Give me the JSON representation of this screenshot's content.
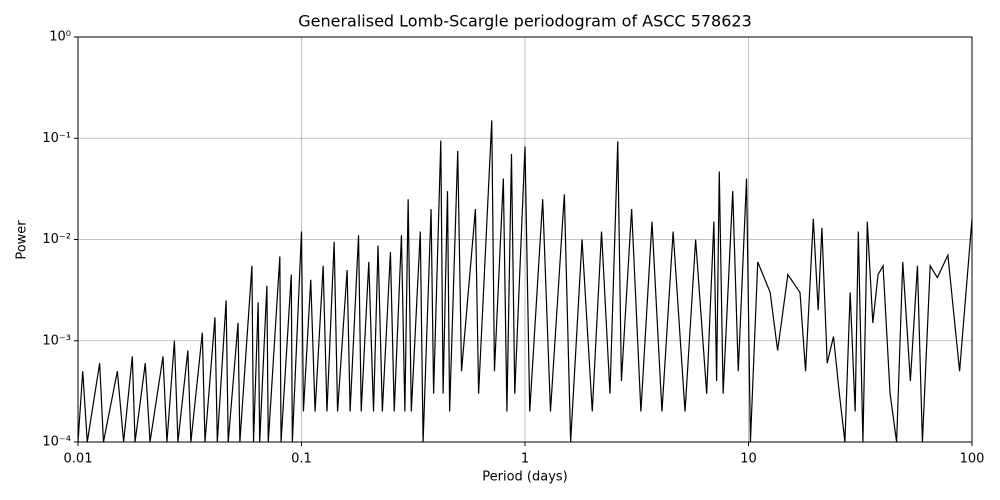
{
  "chart_data": {
    "type": "line",
    "title": "Generalised Lomb-Scargle periodogram of ASCC 578623",
    "x_label": "Period (days)",
    "y_label": "Power",
    "xscale": "log",
    "yscale": "log",
    "grid": true,
    "color": "#000000",
    "xlim": [
      0.01,
      100
    ],
    "ylim": [
      0.0001,
      1
    ],
    "xticks": [
      0.01,
      0.1,
      1,
      10,
      100
    ],
    "yticks": [
      {
        "value": 0.0001,
        "label": "10⁻⁴"
      },
      {
        "value": 0.001,
        "label": "10⁻³"
      },
      {
        "value": 0.01,
        "label": "10⁻²"
      },
      {
        "value": 0.1,
        "label": "10⁻¹"
      },
      {
        "value": 1,
        "label": "10⁰"
      }
    ],
    "x": [
      0.01,
      0.0105,
      0.011,
      0.0125,
      0.013,
      0.015,
      0.016,
      0.0175,
      0.018,
      0.02,
      0.021,
      0.024,
      0.025,
      0.027,
      0.028,
      0.031,
      0.032,
      0.036,
      0.037,
      0.041,
      0.042,
      0.046,
      0.047,
      0.052,
      0.053,
      0.06,
      0.061,
      0.064,
      0.065,
      0.07,
      0.071,
      0.08,
      0.081,
      0.09,
      0.091,
      0.1,
      0.102,
      0.11,
      0.115,
      0.125,
      0.13,
      0.14,
      0.145,
      0.16,
      0.165,
      0.18,
      0.185,
      0.2,
      0.21,
      0.22,
      0.23,
      0.25,
      0.26,
      0.28,
      0.29,
      0.3,
      0.31,
      0.34,
      0.35,
      0.38,
      0.39,
      0.42,
      0.43,
      0.45,
      0.46,
      0.5,
      0.52,
      0.6,
      0.62,
      0.71,
      0.73,
      0.8,
      0.83,
      0.87,
      0.9,
      1.0,
      1.05,
      1.2,
      1.3,
      1.5,
      1.6,
      1.8,
      2.0,
      2.2,
      2.4,
      2.6,
      2.7,
      3.0,
      3.3,
      3.7,
      4.1,
      4.6,
      5.2,
      5.8,
      6.5,
      7.0,
      7.2,
      7.4,
      7.7,
      8.5,
      9.0,
      9.8,
      10.2,
      11,
      12.5,
      13.5,
      15,
      17,
      18,
      19.5,
      20.5,
      21.3,
      22.5,
      24,
      25.5,
      27,
      28.5,
      30,
      31,
      32.5,
      34,
      36,
      38,
      40,
      43,
      46,
      49,
      53,
      57,
      60,
      65,
      70,
      78,
      88,
      100
    ],
    "values": [
      0.0001,
      0.0005,
      0.0001,
      0.0006,
      0.0001,
      0.0005,
      0.0001,
      0.0007,
      0.0001,
      0.0006,
      0.0001,
      0.0007,
      0.0001,
      0.001,
      0.0001,
      0.0008,
      0.0001,
      0.0012,
      0.0001,
      0.0017,
      0.0001,
      0.0025,
      0.0001,
      0.0015,
      0.0001,
      0.0055,
      0.0001,
      0.0024,
      0.0001,
      0.0035,
      0.0001,
      0.0068,
      0.0001,
      0.0045,
      0.0001,
      0.012,
      0.0002,
      0.004,
      0.0002,
      0.0055,
      0.0002,
      0.0095,
      0.0002,
      0.005,
      0.0002,
      0.011,
      0.0002,
      0.006,
      0.0002,
      0.0087,
      0.0002,
      0.0075,
      0.0002,
      0.011,
      0.0002,
      0.025,
      0.0002,
      0.012,
      0.0001,
      0.02,
      0.0003,
      0.095,
      0.0003,
      0.03,
      0.0002,
      0.075,
      0.0005,
      0.02,
      0.0003,
      0.15,
      0.0005,
      0.04,
      0.0002,
      0.07,
      0.0003,
      0.083,
      0.0002,
      0.025,
      0.0002,
      0.028,
      0.0001,
      0.01,
      0.0002,
      0.012,
      0.0003,
      0.093,
      0.0004,
      0.02,
      0.0002,
      0.015,
      0.0002,
      0.012,
      0.0002,
      0.01,
      0.0003,
      0.015,
      0.0004,
      0.047,
      0.0003,
      0.03,
      0.0005,
      0.04,
      0.0001,
      0.006,
      0.003,
      0.0008,
      0.0045,
      0.003,
      0.0005,
      0.016,
      0.002,
      0.013,
      0.0006,
      0.0011,
      0.0003,
      0.0001,
      0.003,
      0.0002,
      0.012,
      0.0001,
      0.015,
      0.0015,
      0.0045,
      0.0055,
      0.0003,
      0.0001,
      0.006,
      0.0004,
      0.0055,
      0.0001,
      0.0055,
      0.0042,
      0.007,
      0.0005,
      0.016
    ]
  }
}
